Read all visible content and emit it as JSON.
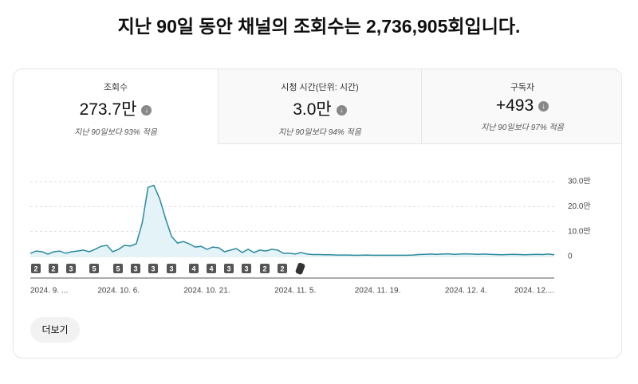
{
  "header": {
    "title": "지난 90일 동안 채널의 조회수는 2,736,905회입니다."
  },
  "tabs": [
    {
      "label": "조회수",
      "value": "273.7만",
      "comparison": "지난 90일보다 93% 적음"
    },
    {
      "label": "시청 시간(단위: 시간)",
      "value": "3.0만",
      "comparison": "지난 90일보다 94% 적음"
    },
    {
      "label": "구독자",
      "value": "+493",
      "comparison": "지난 90일보다 97% 적음"
    }
  ],
  "chart_data": {
    "type": "line",
    "color": "#2a8a9e",
    "categories": [
      "2024. 9. ...",
      null,
      null,
      null,
      null,
      null,
      null,
      null,
      null,
      null,
      null,
      null,
      null,
      null,
      null,
      "2024. 10. 6.",
      null,
      null,
      null,
      null,
      null,
      null,
      null,
      null,
      null,
      null,
      null,
      null,
      null,
      null,
      "2024. 10. 21.",
      null,
      null,
      null,
      null,
      null,
      null,
      null,
      null,
      null,
      null,
      null,
      null,
      null,
      null,
      "2024. 11. 5.",
      null,
      null,
      null,
      null,
      null,
      null,
      null,
      null,
      null,
      null,
      null,
      null,
      null,
      "2024. 11. 19.",
      null,
      null,
      null,
      null,
      null,
      null,
      null,
      null,
      null,
      null,
      null,
      null,
      null,
      null,
      "2024. 12. 4.",
      null,
      null,
      null,
      null,
      null,
      null,
      null,
      null,
      null,
      null,
      null,
      null,
      null,
      null,
      "2024. 12...."
    ],
    "values": [
      13000,
      22000,
      19000,
      10000,
      19000,
      22000,
      13000,
      19000,
      22000,
      26000,
      19000,
      29000,
      41000,
      45000,
      19000,
      29000,
      45000,
      42000,
      51000,
      134000,
      277000,
      285000,
      230000,
      150000,
      80000,
      54000,
      60000,
      51000,
      38000,
      41000,
      29000,
      38000,
      35000,
      19000,
      26000,
      32000,
      16000,
      29000,
      16000,
      26000,
      22000,
      29000,
      26000,
      13000,
      13000,
      10000,
      16000,
      10000,
      8000,
      8000,
      7000,
      7000,
      6000,
      6000,
      6000,
      5000,
      5000,
      6000,
      5000,
      5000,
      5000,
      5000,
      5000,
      5000,
      5000,
      6000,
      8000,
      9000,
      10000,
      9000,
      10000,
      11000,
      9000,
      10000,
      11000,
      10000,
      9000,
      10000,
      9000,
      8000,
      7000,
      8000,
      9000,
      8000,
      7000,
      8000,
      9000,
      8000,
      10000,
      7000
    ],
    "ylim": [
      0,
      300000
    ],
    "yticks": [
      0,
      {
        "value": 100000,
        "label": "10.0만"
      },
      {
        "value": 200000,
        "label": "20.0만"
      },
      {
        "value": 300000,
        "label": "30.0만"
      }
    ],
    "grid": true
  },
  "markers": [
    "2",
    "2",
    "3",
    "5",
    "5",
    "3",
    "3",
    "3",
    "4",
    "4",
    "3",
    "3",
    "2",
    "2"
  ],
  "button": "더보기"
}
